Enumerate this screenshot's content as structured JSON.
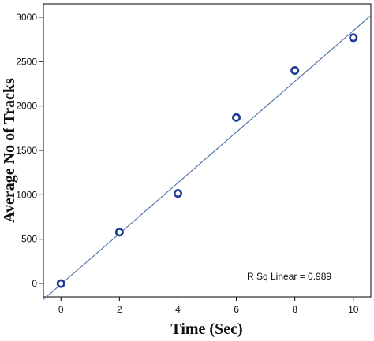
{
  "chart_data": {
    "type": "scatter",
    "xlabel": "Time (Sec)",
    "ylabel": "Average No of Tracks",
    "xlim": [
      -0.6,
      10.6
    ],
    "ylim": [
      -150,
      3150
    ],
    "xticks": [
      0,
      2,
      4,
      6,
      8,
      10
    ],
    "yticks": [
      0,
      500,
      1000,
      1500,
      2000,
      2500,
      3000
    ],
    "grid": false,
    "series": [
      {
        "x": [
          0,
          2,
          4,
          6,
          8,
          10
        ],
        "y": [
          0,
          580,
          1015,
          1870,
          2400,
          2770
        ]
      }
    ],
    "fit_line": {
      "type": "linear",
      "x": [
        -0.6,
        10.6
      ],
      "y": [
        -180,
        3020
      ]
    },
    "annotation": "R Sq Linear = 0.989",
    "marker_color": "#1f3a93",
    "line_color": "#4a6fa5"
  }
}
